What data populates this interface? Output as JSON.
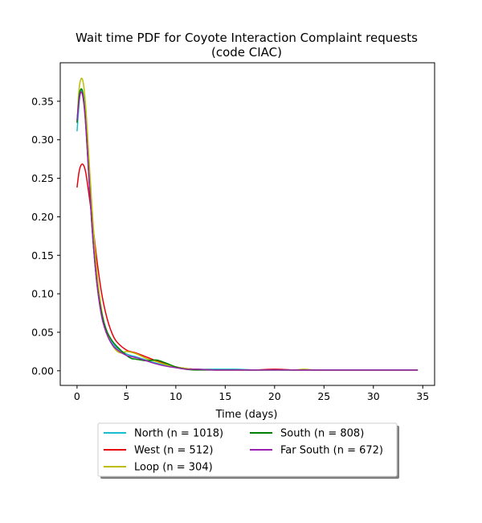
{
  "chart_data": {
    "type": "line",
    "title": "Wait time PDF for Coyote Interaction Complaint  requests",
    "subtitle": "(code CIAC)",
    "xlabel": "Time (days)",
    "ylabel": "",
    "xlim": [
      -1.7,
      36.2
    ],
    "ylim": [
      -0.019,
      0.4
    ],
    "xticks": [
      0,
      5,
      10,
      15,
      20,
      25,
      30,
      35
    ],
    "yticks": [
      0.0,
      0.05,
      0.1,
      0.15,
      0.2,
      0.25,
      0.3,
      0.35
    ],
    "xtick_labels": [
      "0",
      "5",
      "10",
      "15",
      "20",
      "25",
      "30",
      "35"
    ],
    "ytick_labels": [
      "0.00",
      "0.05",
      "0.10",
      "0.15",
      "0.20",
      "0.25",
      "0.30",
      "0.35"
    ],
    "grid": false,
    "legend_placement": "below plot, center, 2 columns",
    "series": [
      {
        "name": "North (n = 1018)",
        "color": "#17becf",
        "x": [
          0,
          0.3,
          0.5,
          0.7,
          1,
          1.5,
          2,
          2.5,
          3,
          3.5,
          4,
          5,
          6,
          7,
          8,
          9,
          10,
          11,
          12,
          14,
          16,
          18,
          20,
          22,
          24,
          26,
          28,
          30,
          32,
          34.5
        ],
        "y": [
          0.311,
          0.36,
          0.363,
          0.35,
          0.3,
          0.19,
          0.115,
          0.072,
          0.05,
          0.038,
          0.03,
          0.022,
          0.018,
          0.014,
          0.01,
          0.007,
          0.005,
          0.003,
          0.002,
          0.002,
          0.002,
          0.001,
          0.001,
          0.001,
          0.001,
          0.001,
          0.001,
          0.001,
          0.001,
          0.001
        ]
      },
      {
        "name": "West (n = 512)",
        "color": "#e8000b",
        "x": [
          0,
          0.2,
          0.4,
          0.6,
          0.8,
          1,
          1.5,
          2,
          2.5,
          3,
          3.5,
          4,
          5,
          6,
          7,
          8,
          9,
          10,
          11,
          12,
          14,
          16,
          18,
          20,
          22,
          24,
          26,
          28,
          30,
          32,
          34.5
        ],
        "y": [
          0.238,
          0.258,
          0.267,
          0.268,
          0.262,
          0.248,
          0.2,
          0.145,
          0.1,
          0.07,
          0.05,
          0.038,
          0.027,
          0.023,
          0.018,
          0.013,
          0.009,
          0.005,
          0.003,
          0.002,
          0.001,
          0.001,
          0.001,
          0.002,
          0.001,
          0.001,
          0.001,
          0.001,
          0.001,
          0.001,
          0.001
        ]
      },
      {
        "name": "Loop (n = 304)",
        "color": "#bcbd00",
        "x": [
          0,
          0.2,
          0.4,
          0.6,
          0.8,
          1,
          1.5,
          2,
          2.5,
          3,
          3.5,
          4,
          4.5,
          5,
          6,
          7,
          8,
          9,
          10,
          11,
          12,
          14,
          16,
          18,
          20,
          22,
          23,
          24,
          26,
          28,
          30,
          32,
          34.5
        ],
        "y": [
          0.323,
          0.365,
          0.379,
          0.376,
          0.355,
          0.32,
          0.215,
          0.13,
          0.078,
          0.05,
          0.035,
          0.026,
          0.023,
          0.025,
          0.022,
          0.016,
          0.012,
          0.008,
          0.005,
          0.003,
          0.002,
          0.001,
          0.001,
          0.001,
          0.001,
          0.001,
          0.002,
          0.001,
          0.001,
          0.001,
          0.001,
          0.001,
          0.001
        ]
      },
      {
        "name": "South (n = 808)",
        "color": "#008000",
        "x": [
          0,
          0.2,
          0.4,
          0.6,
          0.8,
          1,
          1.5,
          2,
          2.5,
          3,
          3.5,
          4,
          5,
          5.5,
          6,
          7,
          8,
          9,
          10,
          11,
          12,
          14,
          16,
          18,
          20,
          22,
          24,
          26,
          28,
          30,
          32,
          34.5
        ],
        "y": [
          0.322,
          0.355,
          0.366,
          0.36,
          0.335,
          0.295,
          0.19,
          0.115,
          0.075,
          0.052,
          0.04,
          0.032,
          0.02,
          0.016,
          0.015,
          0.013,
          0.014,
          0.01,
          0.005,
          0.002,
          0.001,
          0.001,
          0.001,
          0.001,
          0.001,
          0.001,
          0.001,
          0.001,
          0.001,
          0.001,
          0.001,
          0.001
        ]
      },
      {
        "name": "Far South (n = 672)",
        "color": "#9b1fb0",
        "x": [
          0,
          0.2,
          0.4,
          0.6,
          0.8,
          1,
          1.5,
          2,
          2.5,
          3,
          3.5,
          4,
          5,
          6,
          7,
          8,
          9,
          10,
          11,
          12,
          14,
          16,
          18,
          20,
          22,
          24,
          26,
          28,
          30,
          32,
          34.5
        ],
        "y": [
          0.325,
          0.35,
          0.362,
          0.355,
          0.332,
          0.295,
          0.19,
          0.115,
          0.07,
          0.048,
          0.035,
          0.028,
          0.02,
          0.017,
          0.013,
          0.009,
          0.006,
          0.004,
          0.002,
          0.002,
          0.001,
          0.001,
          0.001,
          0.001,
          0.001,
          0.001,
          0.001,
          0.001,
          0.001,
          0.001,
          0.001
        ]
      }
    ]
  }
}
